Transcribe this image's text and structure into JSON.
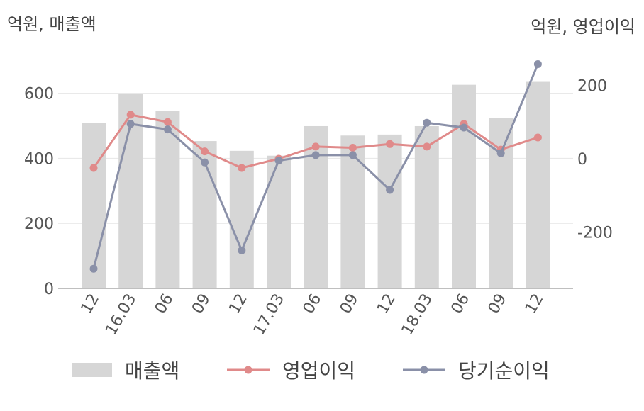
{
  "chart_data": {
    "type": "bar+line",
    "left_axis_label": "억원, 매출액",
    "right_axis_label": "억원, 영업이익",
    "categories": [
      "12",
      "16.03",
      "06",
      "09",
      "12",
      "17.03",
      "06",
      "09",
      "12",
      "18.03",
      "06",
      "09",
      "12"
    ],
    "left_ticks": [
      0,
      200,
      400,
      600
    ],
    "right_ticks": [
      -200,
      0,
      200
    ],
    "ylim_left": [
      0,
      750
    ],
    "ylim_right": [
      -350,
      265
    ],
    "series": [
      {
        "name": "매출액",
        "type": "bar",
        "axis": "left",
        "color": "#d6d6d6",
        "values": [
          508,
          598,
          546,
          453,
          423,
          408,
          499,
          470,
          473,
          499,
          626,
          525,
          635
        ]
      },
      {
        "name": "영업이익",
        "type": "line",
        "axis": "right",
        "color": "#e08a8a",
        "values": [
          -25,
          120,
          100,
          20,
          -25,
          0,
          33,
          30,
          40,
          33,
          95,
          25,
          58
        ]
      },
      {
        "name": "당기순이익",
        "type": "line",
        "axis": "right",
        "color": "#8a90a8",
        "values": [
          -300,
          95,
          80,
          -10,
          -250,
          -5,
          10,
          10,
          -85,
          98,
          85,
          15,
          258
        ]
      }
    ],
    "grid": true,
    "legend_position": "bottom"
  }
}
